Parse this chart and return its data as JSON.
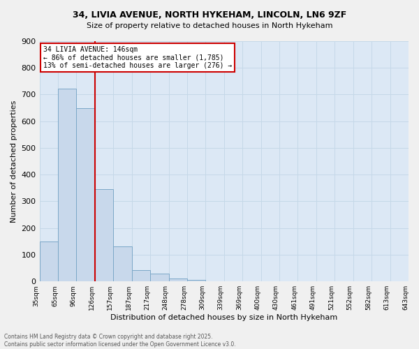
{
  "title1": "34, LIVIA AVENUE, NORTH HYKEHAM, LINCOLN, LN6 9ZF",
  "title2": "Size of property relative to detached houses in North Hykeham",
  "xlabel": "Distribution of detached houses by size in North Hykeham",
  "ylabel": "Number of detached properties",
  "bar_values": [
    150,
    722,
    650,
    345,
    130,
    42,
    30,
    12,
    5,
    0,
    0,
    0,
    0,
    0,
    0,
    0,
    0,
    0,
    0,
    0
  ],
  "bin_labels": [
    "35sqm",
    "65sqm",
    "96sqm",
    "126sqm",
    "157sqm",
    "187sqm",
    "217sqm",
    "248sqm",
    "278sqm",
    "309sqm",
    "339sqm",
    "369sqm",
    "400sqm",
    "430sqm",
    "461sqm",
    "491sqm",
    "521sqm",
    "552sqm",
    "582sqm",
    "613sqm",
    "643sqm"
  ],
  "bar_color": "#c8d8eb",
  "bar_edge_color": "#7ba7c7",
  "grid_color": "#c5d8e8",
  "background_color": "#dce8f5",
  "fig_background": "#f0f0f0",
  "vline_color": "#cc0000",
  "vline_x": 3.0,
  "annotation_text": "34 LIVIA AVENUE: 146sqm\n← 86% of detached houses are smaller (1,785)\n13% of semi-detached houses are larger (276) →",
  "annotation_box_color": "#cc0000",
  "annotation_fill": "#ffffff",
  "ylim": [
    0,
    900
  ],
  "yticks": [
    0,
    100,
    200,
    300,
    400,
    500,
    600,
    700,
    800,
    900
  ],
  "footer": "Contains HM Land Registry data © Crown copyright and database right 2025.\nContains public sector information licensed under the Open Government Licence v3.0.",
  "n_bins": 20,
  "n_bar_values": 20
}
